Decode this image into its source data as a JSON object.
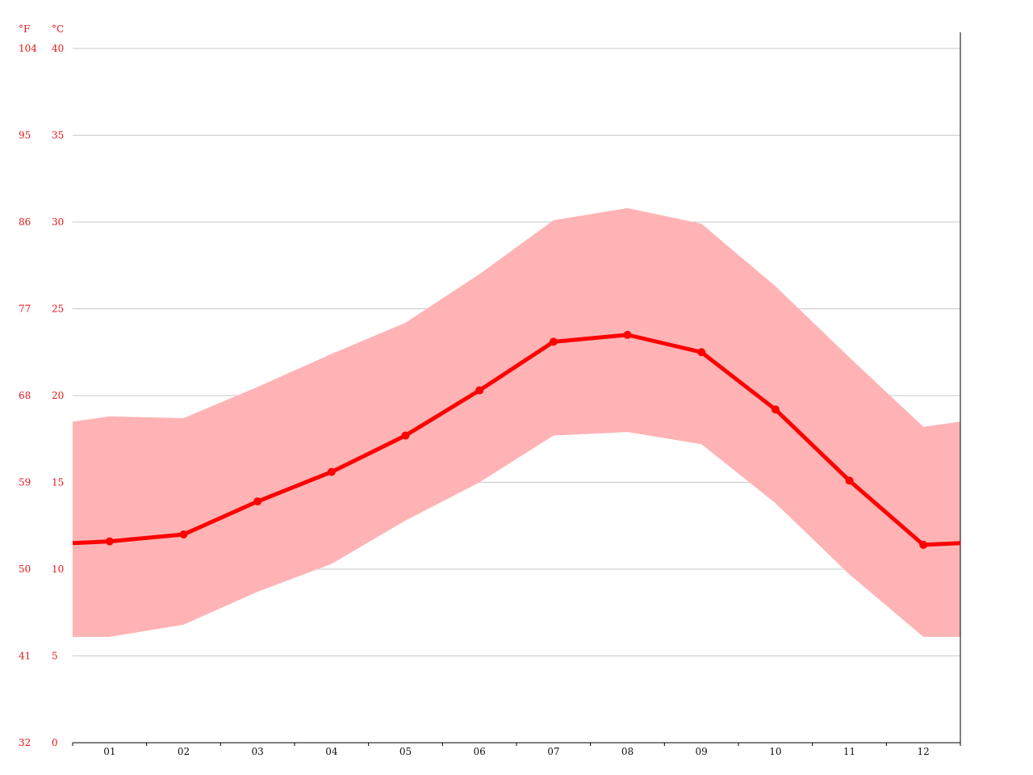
{
  "chart_data": {
    "type": "line",
    "categories": [
      "01",
      "02",
      "03",
      "04",
      "05",
      "06",
      "07",
      "08",
      "09",
      "10",
      "11",
      "12"
    ],
    "series": [
      {
        "values": [
          11.6,
          12.0,
          13.9,
          15.6,
          17.7,
          20.3,
          23.1,
          23.5,
          22.5,
          19.2,
          15.1,
          11.4
        ]
      }
    ],
    "band": {
      "max": [
        18.8,
        18.7,
        20.5,
        22.4,
        24.2,
        27.0,
        30.1,
        30.8,
        29.9,
        26.3,
        22.2,
        18.2
      ],
      "min": [
        6.1,
        6.8,
        8.7,
        10.3,
        12.8,
        15.0,
        17.7,
        17.9,
        17.2,
        13.8,
        9.7,
        6.1
      ]
    },
    "edge_values": {
      "line": [
        11.5,
        11.5
      ],
      "max": [
        18.5,
        18.5
      ],
      "min": [
        6.1,
        6.1
      ]
    },
    "ylim": [
      0,
      40
    ],
    "yticks_c": [
      "0",
      "5",
      "10",
      "15",
      "20",
      "25",
      "30",
      "35",
      "40"
    ],
    "yticks_f": [
      "32",
      "41",
      "50",
      "59",
      "68",
      "77",
      "86",
      "95",
      "104"
    ],
    "units": {
      "f": "°F",
      "c": "°C"
    },
    "grid": true,
    "colors": {
      "line": "#ff0000",
      "band": "#ffb3b5",
      "tick_text": "#e8151b",
      "grid": "#c8c8c8",
      "axis": "#000000"
    }
  }
}
